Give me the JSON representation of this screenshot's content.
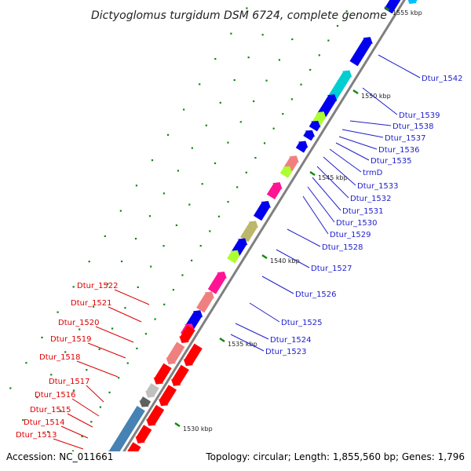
{
  "title": "Dictyoglomus turgidum DSM 6724, complete genome",
  "accession": "Accession: NC_011661",
  "topology": "Topology: circular; Length: 1,855,560 bp; Genes: 1,796",
  "colors": {
    "backbone": "#808080",
    "forward_label": "#1f1fcc",
    "reverse_label": "#dd0000",
    "scale_dot": "#118811"
  },
  "scale_ticks": [
    {
      "label": "1555 kbp"
    },
    {
      "label": "1550 kbp"
    },
    {
      "label": "1545 kbp"
    },
    {
      "label": "1540 kbp"
    },
    {
      "label": "1535 kbp"
    },
    {
      "label": "1530 kbp"
    }
  ],
  "forward_genes": [
    {
      "label": "Dtur_1542",
      "color": "#0000ee"
    },
    {
      "label": "Dtur_1539",
      "color": "#0000ee"
    },
    {
      "label": "Dtur_1538",
      "color": "#adff2f"
    },
    {
      "label": "Dtur_1537",
      "color": "#0000ee"
    },
    {
      "label": "Dtur_1536",
      "color": "#0000ee"
    },
    {
      "label": "Dtur_1535",
      "color": "#0000ee"
    },
    {
      "label": "trmD",
      "color": "#0000ee"
    },
    {
      "label": "Dtur_1533",
      "color": "#f08080"
    },
    {
      "label": "Dtur_1532",
      "color": "#adff2f"
    },
    {
      "label": "Dtur_1531",
      "color": "#ff1493"
    },
    {
      "label": "Dtur_1530",
      "color": "#0000ee"
    },
    {
      "label": "Dtur_1529",
      "color": "#bdb76b"
    },
    {
      "label": "Dtur_1528",
      "color": "#0000ee"
    },
    {
      "label": "Dtur_1527",
      "color": "#adff2f"
    },
    {
      "label": "Dtur_1526",
      "color": "#ff1493"
    },
    {
      "label": "Dtur_1525",
      "color": "#f08080"
    },
    {
      "label": "Dtur_1524",
      "color": "#0000ee"
    },
    {
      "label": "Dtur_1523",
      "color": "#ff1493"
    }
  ],
  "reverse_genes": [
    {
      "label": "Dtur_1522",
      "color": "#ff0000"
    },
    {
      "label": "Dtur_1521",
      "color": "#f08080"
    },
    {
      "label": "Dtur_1520",
      "color": "#ff0000"
    },
    {
      "label": "Dtur_1519",
      "color": "#c0c0c0"
    },
    {
      "label": "Dtur_1518",
      "color": "#606060"
    },
    {
      "label": "Dtur_1517",
      "color": "#4682b4"
    },
    {
      "label": "Dtur_1516",
      "color": "#ff0000"
    },
    {
      "label": "Dtur_1515",
      "color": "#ff0000"
    },
    {
      "label": "Dtur_1514",
      "color": "#ff0000"
    },
    {
      "label": "Dtur_1513",
      "color": "#ff0000"
    }
  ]
}
